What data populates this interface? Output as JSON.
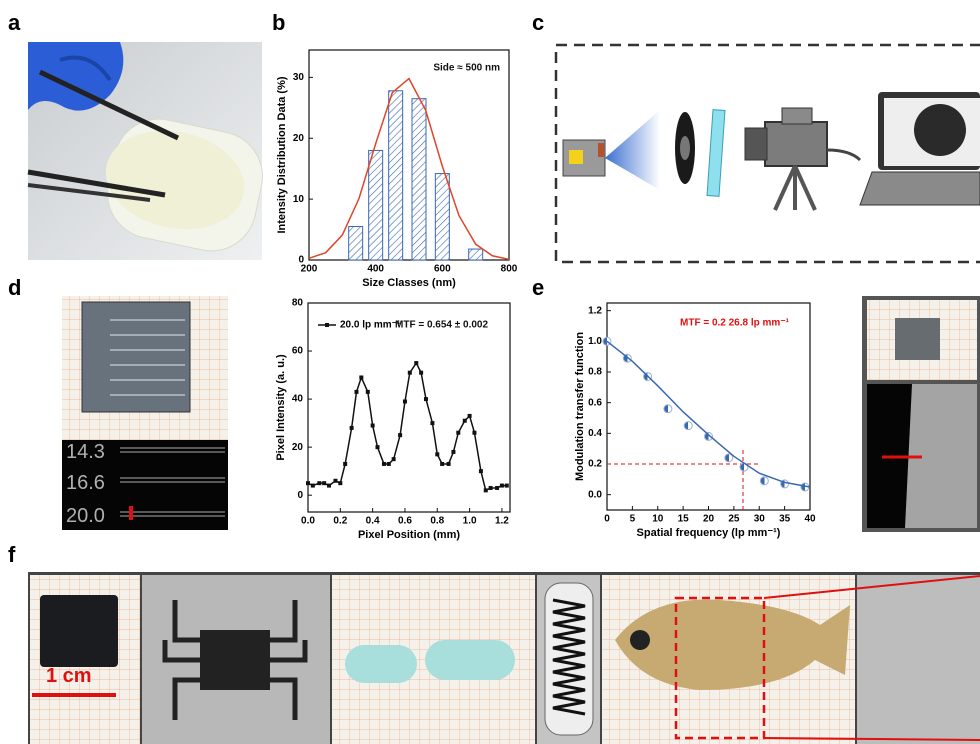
{
  "panel_labels": [
    "a",
    "b",
    "c",
    "d",
    "e",
    "f"
  ],
  "photo_text": {
    "d_rows": [
      "14.3",
      "16.6",
      "20.0"
    ],
    "f_scale": "1 cm"
  },
  "chart_data": [
    {
      "type": "bar",
      "xlabel": "Size Classes (nm)",
      "ylabel": "Intensity Distribution Data (%)",
      "annotation": "Side ≈ 500 nm",
      "xlim": [
        200,
        800
      ],
      "xticks": [
        200,
        400,
        600,
        800
      ],
      "ylim": [
        0,
        34.5
      ],
      "yticks": [
        0,
        10,
        20,
        30
      ],
      "series": [
        {
          "type": "bar",
          "color": "#3a68b0",
          "x": [
            340,
            400,
            460,
            530,
            600,
            700
          ],
          "values": [
            5.5,
            18,
            27.8,
            26.5,
            14.2,
            1.8
          ]
        },
        {
          "type": "line",
          "color": "#e0452a",
          "x": [
            200,
            250,
            300,
            350,
            400,
            450,
            500,
            550,
            600,
            650,
            700,
            750,
            800
          ],
          "values": [
            0.28,
            1.2,
            4.1,
            10.1,
            19.1,
            27.5,
            29.8,
            24.6,
            15.4,
            7.3,
            2.6,
            0.7,
            0.1
          ]
        }
      ]
    },
    {
      "type": "line",
      "xlabel": "Pixel Position (mm)",
      "ylabel": "Pixel Intensity (a. u.)",
      "annotation": "MTF = 0.654 ± 0.002",
      "xlim": [
        0,
        1.25
      ],
      "xticks": [
        {
          "value": 0,
          "label": "0.0"
        },
        {
          "value": 0.2,
          "label": "0.2"
        },
        {
          "value": 0.4,
          "label": "0.4"
        },
        {
          "value": 0.6,
          "label": "0.6"
        },
        {
          "value": 0.8,
          "label": "0.8"
        },
        {
          "value": 1,
          "label": "1.0"
        },
        {
          "value": 1.2,
          "label": "1.2"
        }
      ],
      "ylim": [
        -7,
        80
      ],
      "yticks": [
        0,
        20,
        40,
        60,
        80
      ],
      "series": [
        {
          "type": "line",
          "marker": true,
          "name": "20.0 lp mm⁻¹",
          "color": "#111111",
          "x": [
            0,
            0.03,
            0.07,
            0.1,
            0.13,
            0.17,
            0.2,
            0.23,
            0.27,
            0.3,
            0.33,
            0.37,
            0.4,
            0.43,
            0.47,
            0.5,
            0.53,
            0.57,
            0.6,
            0.63,
            0.67,
            0.7,
            0.73,
            0.77,
            0.8,
            0.83,
            0.87,
            0.9,
            0.93,
            0.97,
            1,
            1.03,
            1.07,
            1.1,
            1.13,
            1.17,
            1.2,
            1.23
          ],
          "values": [
            5,
            4,
            5,
            5,
            4,
            6,
            5,
            13,
            28,
            43,
            49,
            43,
            29,
            20,
            13,
            13,
            15,
            25,
            39,
            51,
            55,
            51,
            40,
            30,
            17,
            13,
            13,
            18,
            26,
            31,
            33,
            26,
            10,
            2,
            3,
            3,
            4,
            4
          ]
        }
      ]
    },
    {
      "type": "scatter",
      "xlabel": "Spatial frequency (lp mm⁻¹)",
      "ylabel": "Modulation transfer function",
      "annotation": "MTF = 0.2   26.8 lp mm⁻¹",
      "xlim": [
        0,
        40
      ],
      "xticks": [
        0,
        5,
        10,
        15,
        20,
        25,
        30,
        35,
        40
      ],
      "ylim": [
        -0.1,
        1.25
      ],
      "yticks": [
        {
          "value": 0,
          "label": "0.0"
        },
        {
          "value": 0.2,
          "label": "0.2"
        },
        {
          "value": 0.4,
          "label": "0.4"
        },
        {
          "value": 0.6,
          "label": "0.6"
        },
        {
          "value": 0.8,
          "label": "0.8"
        },
        {
          "value": 1,
          "label": "1.0"
        },
        {
          "value": 1.2,
          "label": "1.2"
        }
      ],
      "reference": {
        "x": 26.8,
        "y": 0.2
      },
      "series": [
        {
          "type": "scatter",
          "color": "#3a68b0",
          "x": [
            0,
            4,
            8,
            12,
            16,
            20,
            24,
            27,
            31,
            35,
            39
          ],
          "values": [
            1.0,
            0.89,
            0.77,
            0.56,
            0.45,
            0.38,
            0.24,
            0.18,
            0.09,
            0.07,
            0.05
          ]
        },
        {
          "type": "line",
          "color": "#3a68b0",
          "x": [
            0,
            5,
            10,
            15,
            20,
            25,
            30,
            35,
            40
          ],
          "values": [
            1.0,
            0.87,
            0.71,
            0.54,
            0.39,
            0.25,
            0.14,
            0.08,
            0.05
          ]
        }
      ]
    }
  ]
}
